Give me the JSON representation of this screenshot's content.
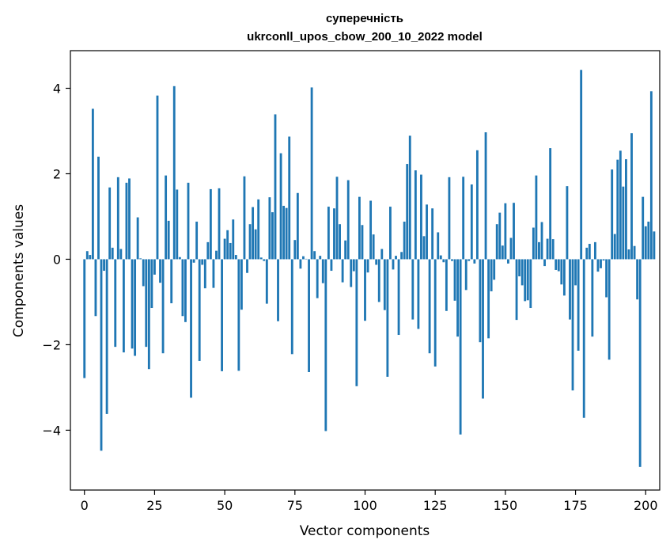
{
  "chart_data": {
    "type": "bar",
    "title": "суперечність",
    "subtitle": "ukrconll_upos_cbow_200_10_2022 model",
    "xlabel": "Vector components",
    "ylabel": "Components values",
    "xlim": [
      -5,
      205
    ],
    "ylim": [
      -5.4,
      4.88
    ],
    "xticks": [
      0,
      25,
      50,
      75,
      100,
      125,
      150,
      175,
      200
    ],
    "yticks": [
      -4,
      -2,
      0,
      2,
      4
    ],
    "xtick_labels": [
      "0",
      "25",
      "50",
      "75",
      "100",
      "125",
      "150",
      "175",
      "200"
    ],
    "ytick_labels": [
      "−4",
      "−2",
      "0",
      "2",
      "4"
    ],
    "color": "#1f77b4",
    "values": [
      -2.78,
      0.19,
      0.1,
      3.52,
      -1.33,
      2.4,
      -4.48,
      -0.27,
      -3.62,
      1.68,
      0.27,
      -2.05,
      1.92,
      0.24,
      -2.18,
      1.79,
      1.89,
      -2.09,
      -2.26,
      0.98,
      0.02,
      -0.63,
      -2.05,
      -2.57,
      -1.14,
      -0.36,
      3.83,
      -0.55,
      -2.2,
      1.96,
      0.9,
      -1.03,
      4.05,
      1.63,
      0.05,
      -1.33,
      -1.47,
      1.79,
      -3.24,
      -0.08,
      0.88,
      -2.38,
      -0.13,
      -0.68,
      0.4,
      1.64,
      -0.67,
      0.2,
      1.66,
      -2.62,
      0.48,
      0.68,
      0.38,
      0.93,
      0.1,
      -2.61,
      -1.18,
      1.94,
      -0.32,
      0.82,
      1.22,
      0.7,
      1.4,
      0.04,
      -0.04,
      -1.04,
      1.45,
      1.1,
      3.39,
      -1.45,
      2.48,
      1.25,
      1.2,
      2.87,
      -2.22,
      0.45,
      1.55,
      -0.22,
      0.07,
      0.01,
      -2.64,
      4.02,
      0.19,
      -0.91,
      0.08,
      -0.56,
      -4.02,
      1.23,
      -0.27,
      1.19,
      1.93,
      0.82,
      -0.54,
      0.44,
      1.85,
      -0.65,
      -0.28,
      -2.97,
      1.46,
      0.8,
      -1.44,
      -0.31,
      1.37,
      0.58,
      -0.13,
      -1.0,
      0.24,
      -1.19,
      -2.75,
      1.23,
      -0.24,
      0.08,
      -1.77,
      0.17,
      0.88,
      2.23,
      2.89,
      -1.41,
      2.08,
      -1.63,
      1.98,
      0.54,
      1.28,
      -2.2,
      1.19,
      -2.51,
      0.63,
      0.09,
      -0.07,
      -1.21,
      1.92,
      -0.04,
      -0.97,
      -1.81,
      -4.1,
      1.93,
      -0.72,
      -0.04,
      1.75,
      -0.1,
      2.55,
      -1.94,
      -3.26,
      2.97,
      -1.85,
      -0.75,
      -0.48,
      0.82,
      1.09,
      0.32,
      1.31,
      -0.1,
      0.5,
      1.32,
      -1.42,
      -0.4,
      -0.61,
      -0.98,
      -0.96,
      -1.14,
      0.74,
      1.96,
      0.4,
      0.87,
      -0.16,
      0.48,
      2.6,
      0.47,
      -0.25,
      -0.28,
      -0.59,
      -0.85,
      1.71,
      -1.41,
      -3.07,
      -0.61,
      -2.14,
      4.43,
      -3.71,
      0.27,
      0.36,
      -1.81,
      0.4,
      -0.29,
      -0.21,
      -0.03,
      -0.89,
      -2.35,
      2.1,
      0.59,
      2.33,
      2.54,
      1.7,
      2.34,
      0.23,
      2.95,
      0.31,
      -0.94,
      -4.86,
      1.46,
      0.77,
      0.88,
      3.93,
      0.65
    ]
  }
}
